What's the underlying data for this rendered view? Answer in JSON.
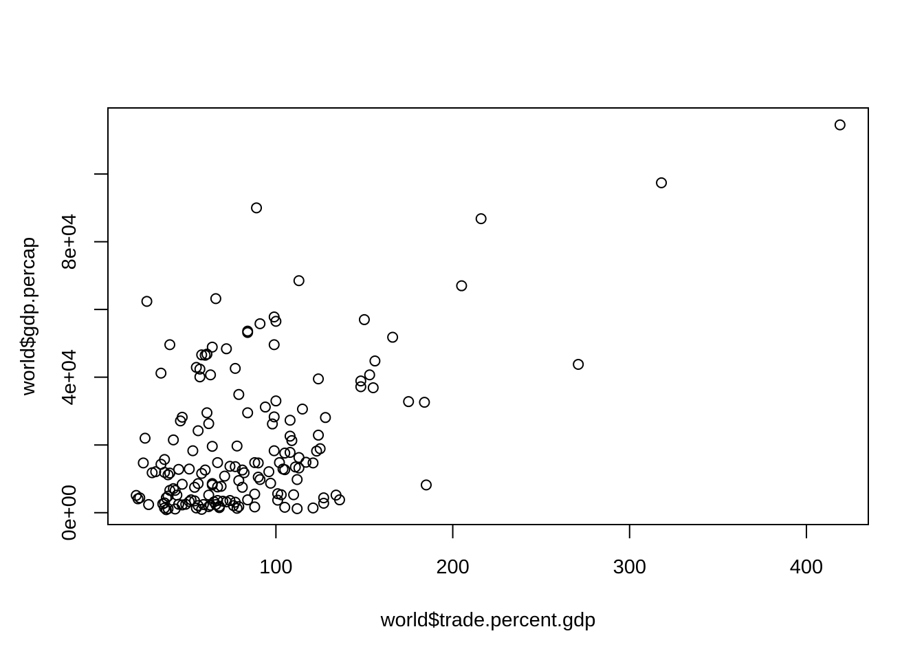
{
  "chart_data": {
    "type": "scatter",
    "title": "",
    "xlabel": "world$trade.percent.gdp",
    "ylabel": "world$gdp.percap",
    "xlim": [
      5,
      435
    ],
    "ylim": [
      -3500,
      119500
    ],
    "x_ticks": [
      {
        "value": 100,
        "label": "100"
      },
      {
        "value": 200,
        "label": "200"
      },
      {
        "value": 300,
        "label": "300"
      },
      {
        "value": 400,
        "label": "400"
      }
    ],
    "y_ticks": [
      {
        "value": 0,
        "label": "0e+00"
      },
      {
        "value": 20000,
        "label": ""
      },
      {
        "value": 40000,
        "label": "4e+04"
      },
      {
        "value": 60000,
        "label": ""
      },
      {
        "value": 80000,
        "label": "8e+04"
      },
      {
        "value": 100000,
        "label": ""
      }
    ],
    "grid": false,
    "legend": "none",
    "marker": "open-circle",
    "points": [
      [
        419,
        114500
      ],
      [
        318,
        97400
      ],
      [
        216,
        86800
      ],
      [
        89,
        90000
      ],
      [
        205,
        67000
      ],
      [
        113,
        68500
      ],
      [
        27,
        62400
      ],
      [
        66,
        63200
      ],
      [
        150,
        57000
      ],
      [
        91,
        55800
      ],
      [
        99,
        57800
      ],
      [
        100,
        56500
      ],
      [
        84,
        53200
      ],
      [
        84,
        53600
      ],
      [
        166,
        51800
      ],
      [
        40,
        49600
      ],
      [
        64,
        48900
      ],
      [
        72,
        48400
      ],
      [
        99,
        49600
      ],
      [
        60,
        46500
      ],
      [
        61,
        46800
      ],
      [
        58,
        46600
      ],
      [
        156,
        44800
      ],
      [
        271,
        43800
      ],
      [
        55,
        42900
      ],
      [
        57,
        42400
      ],
      [
        77,
        42600
      ],
      [
        35,
        41200
      ],
      [
        57,
        40100
      ],
      [
        63,
        40700
      ],
      [
        153,
        40700
      ],
      [
        124,
        39500
      ],
      [
        148,
        38900
      ],
      [
        148,
        37200
      ],
      [
        155,
        36900
      ],
      [
        79,
        34900
      ],
      [
        175,
        32800
      ],
      [
        184,
        32600
      ],
      [
        100,
        33000
      ],
      [
        94,
        31200
      ],
      [
        115,
        30600
      ],
      [
        61,
        29500
      ],
      [
        84,
        29500
      ],
      [
        47,
        28200
      ],
      [
        99,
        28300
      ],
      [
        128,
        28100
      ],
      [
        46,
        27100
      ],
      [
        62,
        26300
      ],
      [
        98,
        26200
      ],
      [
        108,
        27300
      ],
      [
        56,
        24200
      ],
      [
        108,
        22600
      ],
      [
        124,
        22900
      ],
      [
        109,
        21300
      ],
      [
        26,
        22000
      ],
      [
        42,
        21500
      ],
      [
        64,
        19600
      ],
      [
        78,
        19700
      ],
      [
        53,
        18300
      ],
      [
        99,
        18300
      ],
      [
        123,
        18200
      ],
      [
        125,
        18900
      ],
      [
        105,
        17600
      ],
      [
        108,
        17800
      ],
      [
        37,
        15700
      ],
      [
        113,
        16300
      ],
      [
        25,
        14700
      ],
      [
        67,
        14800
      ],
      [
        88,
        14800
      ],
      [
        35,
        14300
      ],
      [
        90,
        14700
      ],
      [
        102,
        14800
      ],
      [
        117,
        14900
      ],
      [
        121,
        14700
      ],
      [
        74,
        13700
      ],
      [
        77,
        13600
      ],
      [
        81,
        12600
      ],
      [
        113,
        13200
      ],
      [
        104,
        12900
      ],
      [
        111,
        13500
      ],
      [
        30,
        11800
      ],
      [
        32,
        12100
      ],
      [
        37,
        11900
      ],
      [
        40,
        11700
      ],
      [
        39,
        11200
      ],
      [
        45,
        12800
      ],
      [
        51,
        12900
      ],
      [
        60,
        12600
      ],
      [
        58,
        11600
      ],
      [
        82,
        11800
      ],
      [
        71,
        10800
      ],
      [
        96,
        12100
      ],
      [
        90,
        10500
      ],
      [
        91,
        9800
      ],
      [
        105,
        12700
      ],
      [
        112,
        9800
      ],
      [
        79,
        9500
      ],
      [
        47,
        8400
      ],
      [
        56,
        8600
      ],
      [
        64,
        8600
      ],
      [
        64,
        8200
      ],
      [
        97,
        8700
      ],
      [
        185,
        8200
      ],
      [
        67,
        7600
      ],
      [
        69,
        7800
      ],
      [
        54,
        7500
      ],
      [
        42,
        7100
      ],
      [
        43,
        6600
      ],
      [
        40,
        6600
      ],
      [
        81,
        7500
      ],
      [
        62,
        5200
      ],
      [
        44,
        5200
      ],
      [
        39,
        4900
      ],
      [
        21,
        5100
      ],
      [
        22,
        4100
      ],
      [
        38,
        4400
      ],
      [
        23,
        4400
      ],
      [
        88,
        5500
      ],
      [
        101,
        5600
      ],
      [
        103,
        5300
      ],
      [
        110,
        5300
      ],
      [
        134,
        5200
      ],
      [
        127,
        4400
      ],
      [
        136,
        3800
      ],
      [
        84,
        3800
      ],
      [
        101,
        3700
      ],
      [
        70,
        3400
      ],
      [
        72,
        3200
      ],
      [
        74,
        3600
      ],
      [
        51,
        3300
      ],
      [
        52,
        3800
      ],
      [
        54,
        3500
      ],
      [
        65,
        3200
      ],
      [
        67,
        3600
      ],
      [
        77,
        3100
      ],
      [
        36,
        2600
      ],
      [
        37,
        2900
      ],
      [
        47,
        2300
      ],
      [
        49,
        2500
      ],
      [
        59,
        2400
      ],
      [
        63,
        2200
      ],
      [
        66,
        2400
      ],
      [
        127,
        2800
      ],
      [
        28,
        2400
      ],
      [
        37,
        1400
      ],
      [
        43,
        1100
      ],
      [
        39,
        1200
      ],
      [
        55,
        1400
      ],
      [
        58,
        1000
      ],
      [
        62,
        1800
      ],
      [
        68,
        1500
      ],
      [
        76,
        2100
      ],
      [
        78,
        1300
      ],
      [
        105,
        1600
      ],
      [
        112,
        1200
      ],
      [
        121,
        1400
      ],
      [
        45,
        2500
      ],
      [
        56,
        2100
      ],
      [
        68,
        1900
      ],
      [
        79,
        1800
      ],
      [
        38,
        900
      ],
      [
        88,
        1700
      ]
    ]
  }
}
